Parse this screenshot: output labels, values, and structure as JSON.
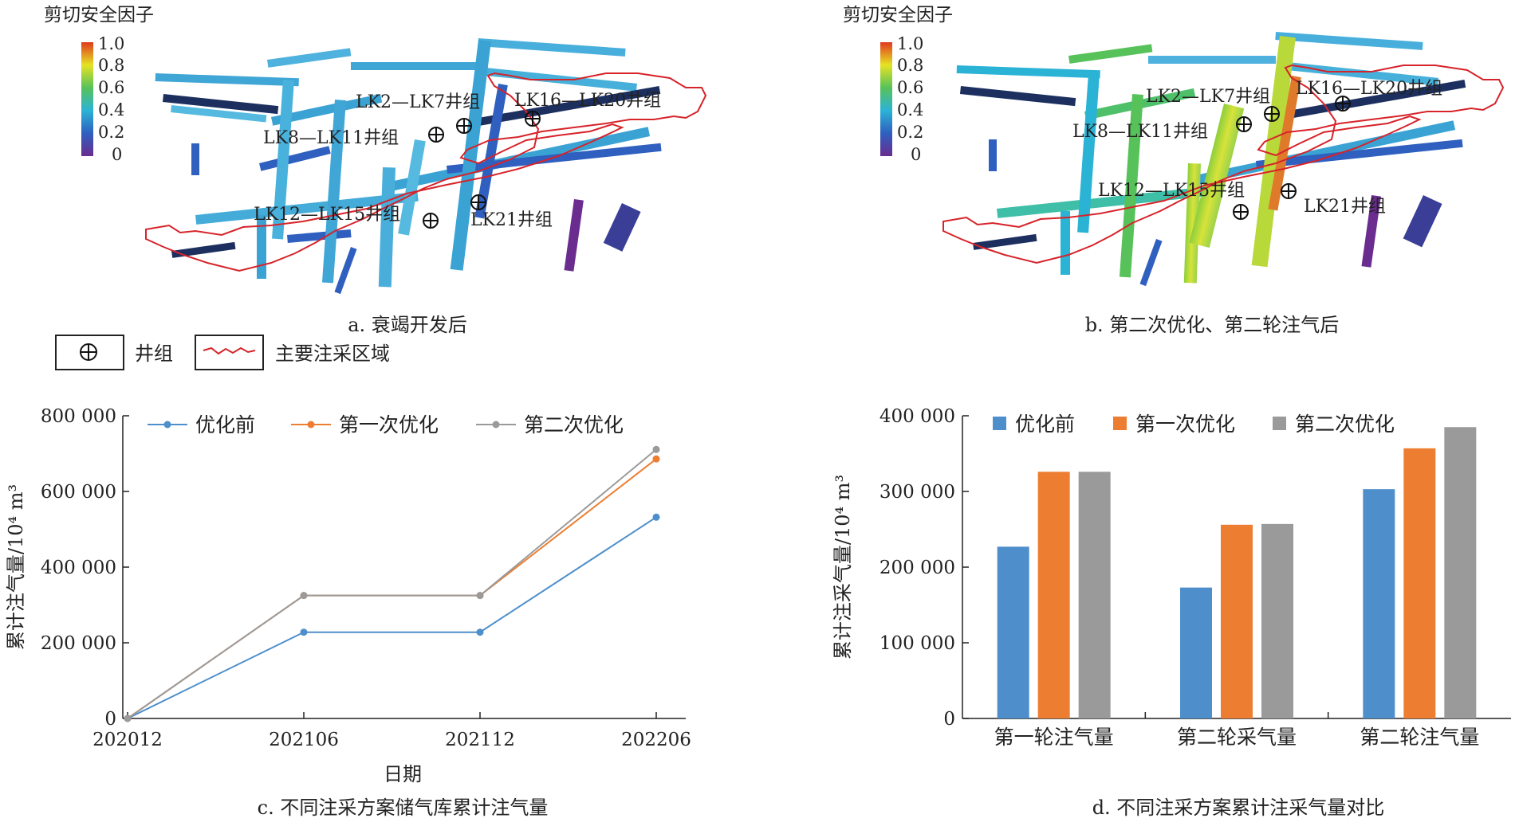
{
  "maps": [
    {
      "cbar_title": "剪切安全因子",
      "cbar_ticks": [
        "1.0",
        "0.8",
        "0.6",
        "0.4",
        "0.2",
        "0"
      ],
      "labels": [
        "LK2—LK7井组",
        "LK16—LK20井组",
        "LK8—LK11井组",
        "LK12—LK15井组",
        "LK21井组"
      ],
      "caption": "a. 衰竭开发后"
    },
    {
      "cbar_title": "剪切安全因子",
      "cbar_ticks": [
        "1.0",
        "0.8",
        "0.6",
        "0.4",
        "0.2",
        "0"
      ],
      "labels": [
        "LK2—LK7井组",
        "LK16—LK20井组",
        "LK8—LK11井组",
        "LK12—LK15井组",
        "LK21井组"
      ],
      "caption": "b. 第二次优化、第二轮注气后"
    }
  ],
  "legend_bottom": {
    "well_group": "井组",
    "region": "主要注采区域"
  },
  "colors": {
    "before": "#4E8FCB",
    "first": "#ED7D31",
    "second": "#9A9A9A",
    "region_line": "#D7232A"
  },
  "chart_data": [
    {
      "type": "line",
      "caption": "c. 不同注采方案储气库累计注气量",
      "xlabel": "日期",
      "ylabel": "累计注气量/10⁴ m³",
      "categories": [
        "202012",
        "202106",
        "202112",
        "202206"
      ],
      "ylim": [
        0,
        800000
      ],
      "yticks": [
        "0",
        "200 000",
        "400 000",
        "600 000",
        "800 000"
      ],
      "series": [
        {
          "name": "优化前",
          "values": [
            0,
            228000,
            228000,
            532000
          ]
        },
        {
          "name": "第一次优化",
          "values": [
            0,
            325000,
            325000,
            686000
          ]
        },
        {
          "name": "第二次优化",
          "values": [
            0,
            325000,
            325000,
            711000
          ]
        }
      ],
      "legend_placement": "top"
    },
    {
      "type": "bar",
      "caption": "d. 不同注采方案累计注采气量对比",
      "ylabel": "累计注采气量/10⁴ m³",
      "categories": [
        "第一轮注气量",
        "第二轮采气量",
        "第二轮注气量"
      ],
      "ylim": [
        0,
        400000
      ],
      "yticks": [
        "0",
        "100 000",
        "200 000",
        "300 000",
        "400 000"
      ],
      "series": [
        {
          "name": "优化前",
          "values": [
            227000,
            173000,
            303000
          ]
        },
        {
          "name": "第一次优化",
          "values": [
            326000,
            256000,
            357000
          ]
        },
        {
          "name": "第二次优化",
          "values": [
            326000,
            257000,
            385000
          ]
        }
      ],
      "legend_placement": "top"
    }
  ]
}
